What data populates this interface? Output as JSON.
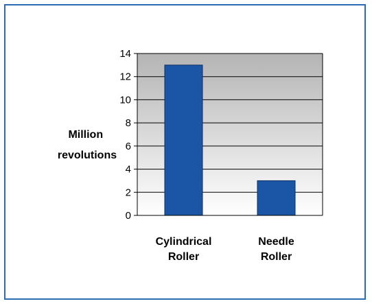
{
  "colors": {
    "frame": "#2c6ab1",
    "bar": "#1a56a5",
    "bar_outline": "#0d2f63",
    "plot_bg_top": "#b4b4b4",
    "plot_bg_bottom": "#ffffff"
  },
  "chart_data": {
    "type": "bar",
    "categories": [
      [
        "Cylindrical",
        "Roller"
      ],
      [
        "Needle",
        "Roller"
      ]
    ],
    "values": [
      13,
      3
    ],
    "title": "",
    "xlabel": "",
    "ylabel": [
      "Million",
      "revolutions"
    ],
    "ylim": [
      0,
      14
    ],
    "yticks": [
      0,
      2,
      4,
      6,
      8,
      10,
      12,
      14
    ],
    "grid": true,
    "legend": "none"
  }
}
